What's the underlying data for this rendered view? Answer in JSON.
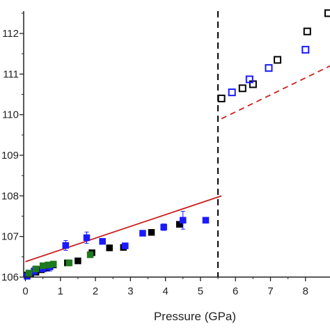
{
  "chart_data": {
    "type": "scatter",
    "title": "",
    "xlabel": "Pressure (GPa)",
    "ylabel": "",
    "xlim": [
      -0.05,
      8.7
    ],
    "ylim": [
      106.0,
      112.55
    ],
    "x_ticks": [
      0,
      1,
      2,
      3,
      4,
      5,
      6,
      7,
      8
    ],
    "x_tick_labels": [
      "0",
      "1",
      "2",
      "3",
      "4",
      "5",
      "6",
      "7",
      "8"
    ],
    "y_ticks": [
      106,
      107,
      108,
      109,
      110,
      111,
      112
    ],
    "y_tick_labels": [
      "106",
      "107",
      "108",
      "109",
      "110",
      "111",
      "112"
    ],
    "grid": false,
    "vertical_line": {
      "x": 5.5,
      "style": "dashed",
      "color": "#000000"
    },
    "series": [
      {
        "color": "#000000",
        "marker": "square-filled",
        "points": [
          [
            0.05,
            106.05
          ],
          [
            0.15,
            106.08
          ],
          [
            0.3,
            106.12
          ],
          [
            0.45,
            106.18
          ],
          [
            0.6,
            106.22
          ],
          [
            0.8,
            106.3
          ],
          [
            1.2,
            106.35
          ],
          [
            1.5,
            106.4
          ],
          [
            1.9,
            106.6
          ],
          [
            2.4,
            106.72
          ],
          [
            2.8,
            106.73
          ],
          [
            3.6,
            107.1
          ],
          [
            4.4,
            107.3
          ]
        ]
      },
      {
        "color": "#1a1aff",
        "marker": "square-filled",
        "points": [
          [
            0.05,
            106.02
          ],
          [
            0.25,
            106.15
          ],
          [
            0.5,
            106.2
          ],
          [
            0.7,
            106.25
          ],
          [
            1.15,
            106.78
          ],
          [
            1.75,
            106.97
          ],
          [
            2.2,
            106.88
          ],
          [
            2.85,
            106.77
          ],
          [
            3.35,
            107.08
          ],
          [
            3.95,
            107.23
          ],
          [
            4.5,
            107.4
          ],
          [
            5.15,
            107.4
          ]
        ],
        "error": [
          0,
          0.1,
          0,
          0.1,
          0.12,
          0.14,
          0.06,
          0,
          0.05,
          0.08,
          0.22,
          0
        ]
      },
      {
        "color": "#1e7a1e",
        "marker": "square-filled",
        "points": [
          [
            0.1,
            106.1
          ],
          [
            0.3,
            106.2
          ],
          [
            0.5,
            106.28
          ],
          [
            0.65,
            106.3
          ],
          [
            0.8,
            106.32
          ],
          [
            1.25,
            106.35
          ],
          [
            1.85,
            106.55
          ]
        ]
      },
      {
        "color": "#000000",
        "marker": "square-open",
        "points": [
          [
            5.6,
            110.4
          ],
          [
            6.2,
            110.65
          ],
          [
            6.5,
            110.75
          ],
          [
            7.2,
            111.35
          ],
          [
            8.05,
            112.05
          ],
          [
            8.65,
            112.5
          ]
        ]
      },
      {
        "color": "#1a1aff",
        "marker": "square-open",
        "points": [
          [
            5.9,
            110.55
          ],
          [
            6.4,
            110.87
          ],
          [
            6.95,
            111.15
          ],
          [
            8.0,
            111.6
          ]
        ]
      }
    ],
    "fit_lines": [
      {
        "color": "#c8201e",
        "style": "solid",
        "from": [
          0.0,
          106.38
        ],
        "to": [
          5.6,
          108.0
        ]
      },
      {
        "color": "#c8201e",
        "style": "dashed",
        "from": [
          5.6,
          109.9
        ],
        "to": [
          8.7,
          111.2
        ]
      }
    ]
  }
}
